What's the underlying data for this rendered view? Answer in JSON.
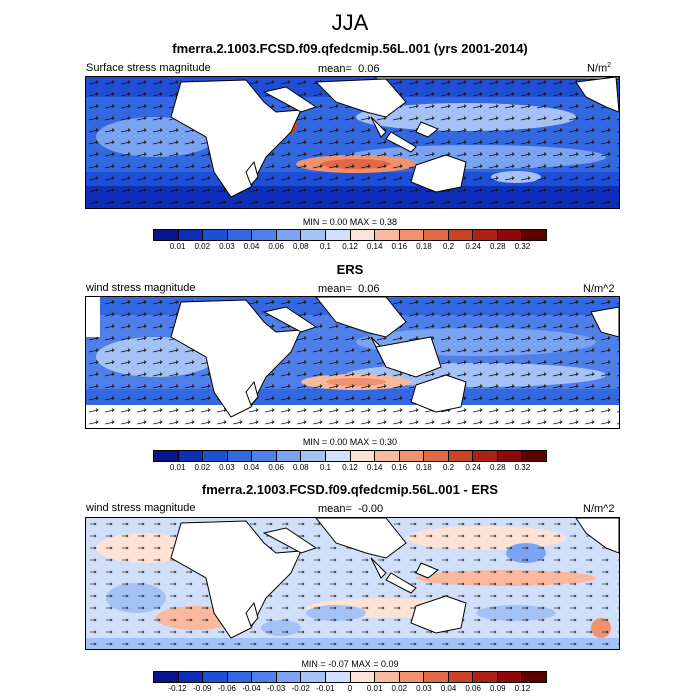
{
  "title": "JJA",
  "panels": [
    {
      "title": "fmerra.2.1003.FCSD.f09.qfedcmip.56L.001 (yrs 2001-2014)",
      "variable": "Surface stress magnitude",
      "mean_label": "mean=",
      "mean_value": "0.06",
      "units_base": "N/m",
      "units_sup": "2",
      "min_label": "MIN =",
      "min_value": "0.00",
      "max_label": "MAX =",
      "max_value": "0.38",
      "colorbar_ticks": [
        "0.01",
        "0.02",
        "0.03",
        "0.04",
        "0.06",
        "0.08",
        "0.1",
        "0.12",
        "0.14",
        "0.16",
        "0.18",
        "0.2",
        "0.24",
        "0.28",
        "0.32"
      ]
    },
    {
      "title": "ERS",
      "variable": "wind stress magnitude",
      "mean_label": "mean=",
      "mean_value": "0.06",
      "units": "N/m^2",
      "min_label": "MIN =",
      "min_value": "0.00",
      "max_label": "MAX =",
      "max_value": "0.30",
      "colorbar_ticks": [
        "0.01",
        "0.02",
        "0.03",
        "0.04",
        "0.06",
        "0.08",
        "0.1",
        "0.12",
        "0.14",
        "0.16",
        "0.18",
        "0.2",
        "0.24",
        "0.28",
        "0.32"
      ]
    },
    {
      "title": "fmerra.2.1003.FCSD.f09.qfedcmip.56L.001 - ERS",
      "variable": "wind stress magnitude",
      "mean_label": "mean=",
      "mean_value": "-0.00",
      "units": "N/m^2",
      "min_label": "MIN =",
      "min_value": "-0.07",
      "max_label": "MAX =",
      "max_value": "0.09",
      "colorbar_ticks": [
        "-0.12",
        "-0.09",
        "-0.06",
        "-0.04",
        "-0.03",
        "-0.02",
        "-0.01",
        "0",
        "0.01",
        "0.02",
        "0.03",
        "0.04",
        "0.06",
        "0.09",
        "0.12"
      ]
    }
  ],
  "colors": {
    "seq_palette": [
      "#08148a",
      "#0d2fb8",
      "#1f4fd6",
      "#3468e0",
      "#4f80ea",
      "#7aa3f2",
      "#a5c2f7",
      "#d0e0fb",
      "#fde2d5",
      "#f8b99e",
      "#f0926f",
      "#e06a48",
      "#cc4428",
      "#ad2215",
      "#8c0a0a",
      "#5e0000"
    ],
    "land": "#ffffff",
    "coast": "#000000"
  }
}
